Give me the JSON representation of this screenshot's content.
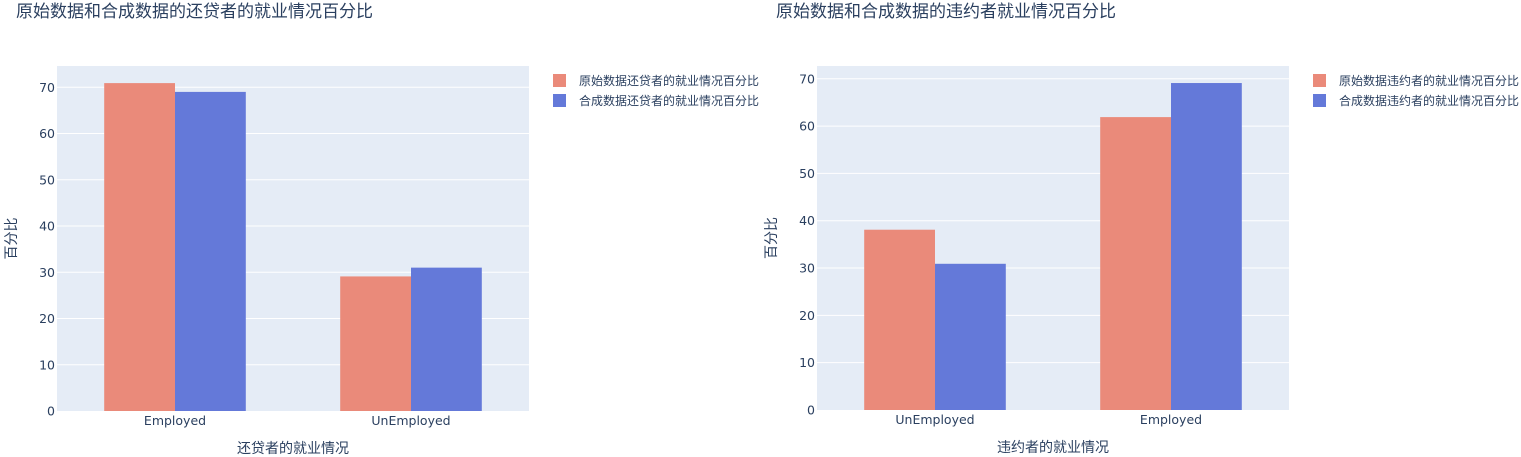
{
  "chart_data": [
    {
      "type": "bar",
      "title": "原始数据和合成数据的还贷者的就业情况百分比",
      "xlabel": "还贷者的就业情况",
      "ylabel": "百分比",
      "categories": [
        "Employed",
        "UnEmployed"
      ],
      "series": [
        {
          "name": "原始数据还贷者的就业情况百分比",
          "values": [
            70.9,
            29.1
          ],
          "color": "#ea8a7a"
        },
        {
          "name": "合成数据还贷者的就业情况百分比",
          "values": [
            69.0,
            31.0
          ],
          "color": "#6479d9"
        }
      ],
      "ylim": [
        0,
        74.6
      ],
      "yticks": [
        0,
        10,
        20,
        30,
        40,
        50,
        60,
        70
      ],
      "grid": true,
      "legend": "top-right"
    },
    {
      "type": "bar",
      "title": "原始数据和合成数据的违约者就业情况百分比",
      "xlabel": "违约者的就业情况",
      "ylabel": "百分比",
      "categories": [
        "UnEmployed",
        "Employed"
      ],
      "series": [
        {
          "name": "原始数据违约者的就业情况百分比",
          "values": [
            38.1,
            61.9
          ],
          "color": "#ea8a7a"
        },
        {
          "name": "合成数据违约者的就业情况百分比",
          "values": [
            30.9,
            69.1
          ],
          "color": "#6479d9"
        }
      ],
      "ylim": [
        0,
        72.7
      ],
      "yticks": [
        0,
        10,
        20,
        30,
        40,
        50,
        60,
        70
      ],
      "grid": true,
      "legend": "top-right"
    }
  ]
}
